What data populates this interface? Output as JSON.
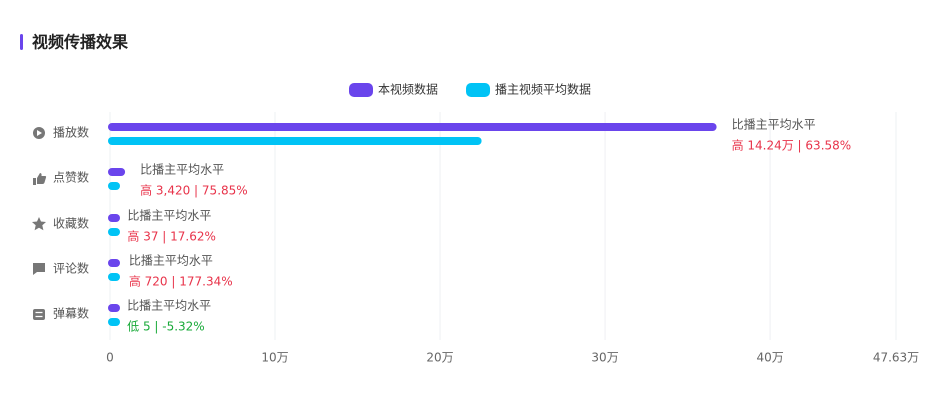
{
  "chart_data": {
    "type": "bar",
    "orientation": "horizontal",
    "title": "视频传播效果",
    "categories": [
      "播放数",
      "点赞数",
      "收藏数",
      "评论数",
      "弹幕数"
    ],
    "series": [
      {
        "name": "本视频数据",
        "color": "#6a45ec",
        "values": [
          366370,
          7929,
          247,
          1126,
          89
        ]
      },
      {
        "name": "播主视频平均数据",
        "color": "#00c3f5",
        "values": [
          223970,
          4509,
          210,
          406,
          94
        ]
      }
    ],
    "annotations": [
      {
        "label": "比播主平均水平",
        "text": "高 14.24万 | 63.58%",
        "color": "#e8334a"
      },
      {
        "label": "比播主平均水平",
        "text": "高 3,420 | 75.85%",
        "color": "#e8334a"
      },
      {
        "label": "比播主平均水平",
        "text": "高 37 | 17.62%",
        "color": "#e8334a"
      },
      {
        "label": "比播主平均水平",
        "text": "高 720 | 177.34%",
        "color": "#e8334a"
      },
      {
        "label": "比播主平均水平",
        "text": "低 5 | -5.32%",
        "color": "#1aaa3a"
      }
    ],
    "xlim": [
      0,
      476300
    ],
    "xticks": [
      0,
      {
        "value": 100000,
        "label": "10万"
      },
      {
        "value": 200000,
        "label": "20万"
      },
      {
        "value": 300000,
        "label": "30万"
      },
      {
        "value": 400000,
        "label": "40万"
      },
      {
        "value": 476300,
        "label": "47.63万"
      }
    ],
    "grid": true,
    "legend": "top"
  }
}
